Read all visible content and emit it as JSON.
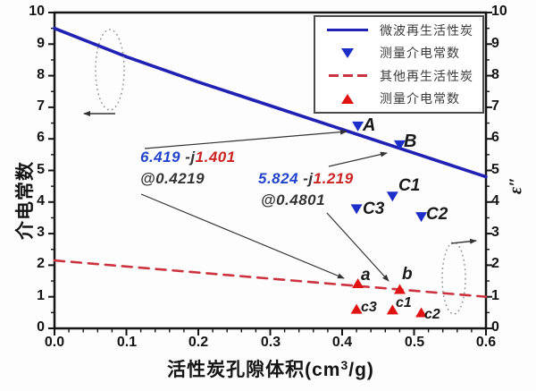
{
  "colors": {
    "blue_line": "#2121b4",
    "blue_marker": "#1e2ec8",
    "blue_text": "#2244cc",
    "red_line": "#cc3340",
    "red_marker": "#e01212",
    "red_text": "#cc2222",
    "axis": "#151515",
    "annotation_gray": "#333333"
  },
  "axes": {
    "x": {
      "title_main": "活性炭孔隙体积(cm",
      "title_sup": "3",
      "title_close": "/g)",
      "ticks": [
        "0.0",
        "0.1",
        "0.2",
        "0.3",
        "0.4",
        "0.5",
        "0.6"
      ]
    },
    "left": {
      "title": "介电常数",
      "ticks": [
        "0",
        "1",
        "2",
        "3",
        "4",
        "5",
        "6",
        "7",
        "8",
        "9",
        "10"
      ]
    },
    "right": {
      "title": "ε″",
      "ticks": [
        "0",
        "1",
        "2",
        "3",
        "4",
        "5",
        "6",
        "7",
        "8",
        "9",
        "10"
      ]
    }
  },
  "legend": {
    "items": [
      {
        "marker": "blue-solid-line",
        "label": "微波再生活性炭"
      },
      {
        "marker": "blue-triangle-down",
        "label": "测量介电常数"
      },
      {
        "marker": "red-dashed-line",
        "label": "其他再生活性炭"
      },
      {
        "marker": "red-triangle-up",
        "label": "测量介电常数"
      }
    ]
  },
  "annotations": [
    {
      "real": "6.419",
      "j": " -j",
      "imag": "1.401",
      "at": "@0.4219"
    },
    {
      "real": "5.824",
      "j": " -j",
      "imag": "1.219",
      "at": "@0.4801"
    }
  ],
  "chart_data": {
    "type": "line",
    "xlabel": "活性炭孔隙体积(cm3/g)",
    "ylabel_left": "介电常数",
    "ylabel_right": "ε″",
    "xlim": [
      0,
      0.6
    ],
    "ylim_left": [
      0,
      10
    ],
    "ylim_right": [
      0,
      10
    ],
    "grid": false,
    "legend_position": "top-right",
    "series": [
      {
        "name": "微波再生活性炭",
        "type": "line",
        "style": "solid",
        "axis": "left",
        "color_key": "blue_line",
        "x": [
          0,
          0.1,
          0.2,
          0.3,
          0.4,
          0.5,
          0.6
        ],
        "y": [
          9.5,
          8.6,
          7.8,
          7.05,
          6.3,
          5.55,
          4.8
        ]
      },
      {
        "name": "测量介电常数",
        "type": "scatter",
        "marker": "triangle-down",
        "axis": "left",
        "color_key": "blue_marker",
        "points": [
          {
            "x": 0.4219,
            "y": 6.419,
            "label": "A"
          },
          {
            "x": 0.4801,
            "y": 5.824,
            "label": "B"
          },
          {
            "x": 0.47,
            "y": 4.2,
            "label": "C1"
          },
          {
            "x": 0.51,
            "y": 3.55,
            "label": "C2"
          },
          {
            "x": 0.42,
            "y": 3.8,
            "label": "C3"
          }
        ]
      },
      {
        "name": "其他再生活性炭",
        "type": "line",
        "style": "dashed",
        "axis": "right",
        "color_key": "red_line",
        "x": [
          0,
          0.6
        ],
        "y": [
          2.15,
          1.0
        ]
      },
      {
        "name": "测量介电常数",
        "type": "scatter",
        "marker": "triangle-up",
        "axis": "right",
        "color_key": "red_marker",
        "points": [
          {
            "x": 0.4219,
            "y": 1.401,
            "label": "a"
          },
          {
            "x": 0.4801,
            "y": 1.219,
            "label": "b"
          },
          {
            "x": 0.47,
            "y": 0.57,
            "label": "c1"
          },
          {
            "x": 0.51,
            "y": 0.48,
            "label": "c2"
          },
          {
            "x": 0.42,
            "y": 0.59,
            "label": "c3"
          }
        ]
      }
    ]
  }
}
